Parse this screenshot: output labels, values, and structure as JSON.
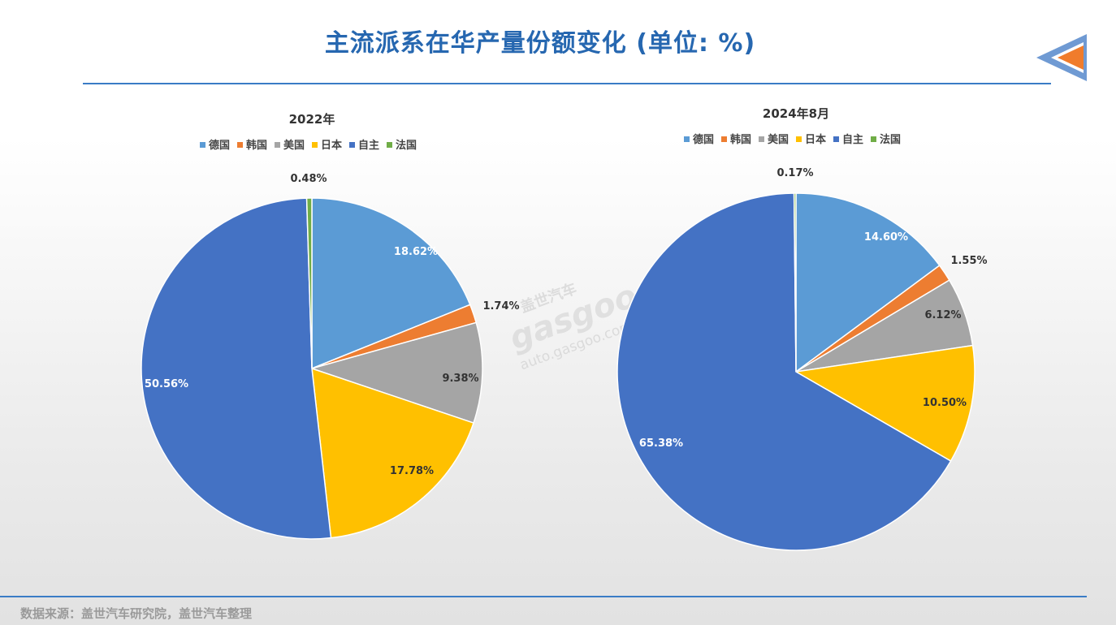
{
  "header": {
    "title": "主流派系在华产量份额变化 (单位: %)"
  },
  "footer": {
    "source": "数据来源：盖世汽车研究院，盖世汽车整理"
  },
  "watermark": {
    "brand_cn": "盖世汽车",
    "brand_en": "gasgoo",
    "url": "auto.gasgoo.com"
  },
  "colors": {
    "德国": "#5b9bd5",
    "韩国": "#ed7d31",
    "美国": "#a5a5a5",
    "日本": "#ffc000",
    "自主": "#4472c4",
    "法国": "#70ad47",
    "accent": "#2667b0"
  },
  "chart_data": [
    {
      "type": "pie",
      "title": "2022年",
      "legend": [
        "德国",
        "韩国",
        "美国",
        "日本",
        "自主",
        "法国"
      ],
      "legend_position": "top",
      "categories": [
        "德国",
        "韩国",
        "美国",
        "日本",
        "自主",
        "法国"
      ],
      "values": [
        18.62,
        1.74,
        9.38,
        17.78,
        50.56,
        0.48
      ],
      "labels": [
        "18.62%",
        "1.74%",
        "9.38%",
        "17.78%",
        "50.56%",
        "0.48%"
      ]
    },
    {
      "type": "pie",
      "title": "2024年8月",
      "legend": [
        "德国",
        "韩国",
        "美国",
        "日本",
        "自主",
        "法国"
      ],
      "legend_position": "top",
      "categories": [
        "德国",
        "韩国",
        "美国",
        "日本",
        "自主",
        "法国"
      ],
      "values": [
        14.6,
        1.55,
        6.12,
        10.5,
        65.38,
        0.17
      ],
      "labels": [
        "14.60%",
        "1.55%",
        "6.12%",
        "10.50%",
        "65.38%",
        "0.17%"
      ]
    }
  ]
}
